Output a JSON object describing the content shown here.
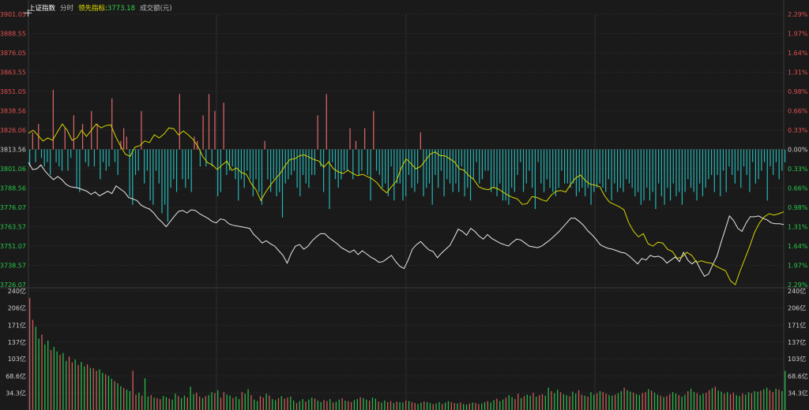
{
  "header": {
    "index_name": "上证指数",
    "period": "分时",
    "leading_label": "领先指标:",
    "leading_value": "3773.18",
    "volume_label": "成交额(元)"
  },
  "colors": {
    "background": "#1a1a1a",
    "grid": "#2f2f2f",
    "price_line": "#e8e8e8",
    "leading_line": "#d6d600",
    "up": "#e06a6a",
    "down": "#26b5b5",
    "volume_up": "#d05a5a",
    "volume_down": "#29b84a",
    "axis_up_text": "#e05050",
    "axis_down_text": "#27c84a",
    "axis_flat_text": "#cfcfcf",
    "header_index": "#ffffff",
    "header_leading": "#e0e000",
    "header_value": "#2fd24a",
    "header_muted": "#b8b8b8"
  },
  "chart_data": [
    {
      "type": "line",
      "title": "",
      "series": [
        {
          "name": "",
          "values": [
            3805.2,
            3800.5,
            3801.0,
            3803.5,
            3799.5,
            3796.5,
            3794.0,
            3796.0,
            3794.0,
            3791.0,
            3789.5,
            3789.0,
            3788.5,
            3787.5,
            3786.5,
            3784.5,
            3786.0,
            3783.5,
            3785.0,
            3786.5,
            3785.0,
            3790.0,
            3788.0,
            3786.0,
            3782.5,
            3781.5,
            3780.5,
            3777.5,
            3776.0,
            3775.0,
            3772.5,
            3769.0,
            3766.5,
            3763.5,
            3767.0,
            3770.5,
            3773.5,
            3774.0,
            3772.5,
            3774.5,
            3774.0,
            3772.0,
            3770.5,
            3769.0,
            3767.0,
            3766.0,
            3768.5,
            3768.0,
            3765.5,
            3764.5,
            3764.0,
            3763.5,
            3763.0,
            3762.5,
            3758.5,
            3756.0,
            3753.0,
            3754.5,
            3752.5,
            3751.0,
            3748.0,
            3745.0,
            3740.0,
            3746.5,
            3751.0,
            3752.0,
            3749.0,
            3751.0,
            3754.5,
            3757.0,
            3759.0,
            3759.0,
            3756.5,
            3754.5,
            3752.5,
            3750.0,
            3748.5,
            3747.0,
            3748.5,
            3745.5,
            3748.0,
            3746.0,
            3744.0,
            3742.5,
            3740.5,
            3741.0,
            3743.0,
            3745.0,
            3741.0,
            3738.0,
            3736.5,
            3742.0,
            3749.0,
            3752.0,
            3754.0,
            3751.0,
            3748.5,
            3747.5,
            3743.5,
            3746.5,
            3749.0,
            3751.5,
            3756.5,
            3762.0,
            3760.5,
            3758.0,
            3762.5,
            3760.5,
            3757.5,
            3755.5,
            3758.5,
            3756.0,
            3754.5,
            3753.0,
            3752.0,
            3751.0,
            3753.5,
            3755.5,
            3755.0,
            3753.0,
            3751.0,
            3750.5,
            3750.0,
            3751.0,
            3753.0,
            3755.0,
            3757.5,
            3760.0,
            3763.0,
            3766.0,
            3769.0,
            3769.0,
            3767.0,
            3764.5,
            3761.0,
            3758.5,
            3755.5,
            3752.0,
            3750.5,
            3749.5,
            3749.0,
            3748.0,
            3747.0,
            3746.5,
            3744.5,
            3742.0,
            3739.5,
            3743.0,
            3742.0,
            3745.0,
            3744.0,
            3744.5,
            3743.0,
            3740.0,
            3742.0,
            3744.0,
            3741.0,
            3747.0,
            3742.0,
            3739.5,
            3741.5,
            3736.0,
            3731.5,
            3733.0,
            3739.0,
            3744.5,
            3753.5,
            3762.0,
            3770.5,
            3767.5,
            3762.5,
            3760.5,
            3766.0,
            3770.0,
            3770.0,
            3770.5,
            3769.0,
            3768.0,
            3766.0,
            3765.5,
            3765.5,
            3765.0
          ]
        },
        {
          "name": "",
          "values": [
            3824.0,
            3826.0,
            3822.5,
            3819.0,
            3821.0,
            3819.5,
            3825.0,
            3830.0,
            3826.0,
            3819.5,
            3821.0,
            3826.0,
            3822.0,
            3826.0,
            3830.0,
            3827.5,
            3829.0,
            3829.5,
            3822.0,
            3816.0,
            3810.5,
            3809.0,
            3815.0,
            3816.0,
            3819.0,
            3818.0,
            3823.0,
            3821.0,
            3823.5,
            3827.5,
            3827.0,
            3823.0,
            3825.5,
            3823.0,
            3820.0,
            3815.5,
            3809.0,
            3805.0,
            3803.5,
            3800.5,
            3803.5,
            3806.0,
            3800.0,
            3801.5,
            3798.5,
            3797.5,
            3791.5,
            3787.5,
            3780.5,
            3786.0,
            3790.5,
            3794.5,
            3798.0,
            3803.0,
            3807.0,
            3807.5,
            3809.5,
            3810.0,
            3808.5,
            3807.0,
            3806.0,
            3802.0,
            3805.5,
            3801.0,
            3799.0,
            3798.0,
            3800.0,
            3798.0,
            3796.5,
            3797.5,
            3796.0,
            3794.5,
            3792.0,
            3788.0,
            3785.5,
            3789.5,
            3793.0,
            3801.5,
            3807.5,
            3804.5,
            3801.0,
            3802.5,
            3806.5,
            3810.5,
            3812.0,
            3809.5,
            3809.5,
            3807.5,
            3805.5,
            3801.0,
            3800.0,
            3796.5,
            3794.0,
            3789.5,
            3788.0,
            3787.5,
            3789.0,
            3788.0,
            3786.0,
            3784.0,
            3782.5,
            3781.5,
            3778.0,
            3778.5,
            3783.0,
            3782.5,
            3781.0,
            3780.0,
            3784.0,
            3786.5,
            3787.0,
            3786.0,
            3791.0,
            3795.0,
            3797.0,
            3793.5,
            3791.0,
            3790.5,
            3789.5,
            3783.5,
            3779.5,
            3778.0,
            3776.5,
            3774.5,
            3766.0,
            3760.5,
            3757.0,
            3759.0,
            3752.5,
            3751.0,
            3753.5,
            3753.0,
            3749.0,
            3747.5,
            3743.0,
            3744.0,
            3747.0,
            3745.0,
            3740.5,
            3741.5,
            3740.5,
            3740.0,
            3738.0,
            3736.5,
            3735.0,
            3728.5,
            3726.0,
            3735.0,
            3743.0,
            3751.0,
            3760.0,
            3766.0,
            3770.0,
            3772.0,
            3771.0,
            3772.0,
            3773.18
          ]
        }
      ],
      "ylim": [
        3726.07,
        3901.05
      ],
      "ticks_left": [
        "3901.05",
        "3888.55",
        "3876.05",
        "3863.55",
        "3851.05",
        "3838.56",
        "3826.06",
        "3813.56",
        "3801.06",
        "3788.56",
        "3776.07",
        "3763.57",
        "3751.07",
        "3738.57",
        "3726.07"
      ],
      "ticks_right": [
        "2.29%",
        "1.97%",
        "1.64%",
        "1.31%",
        "0.98%",
        "0.66%",
        "0.33%",
        "0.00%",
        "0.33%",
        "0.66%",
        "0.98%",
        "1.31%",
        "1.64%",
        "1.97%",
        "2.29%"
      ],
      "baseline": 3813.56,
      "grid": true
    },
    {
      "type": "bar",
      "title": "",
      "series": [
        {
          "name": "",
          "values": [
            -4,
            4,
            -3,
            6,
            -2,
            -4,
            -3,
            -6,
            14,
            -3,
            -4,
            -5,
            5,
            -5,
            -2,
            8,
            -9,
            -10,
            6,
            -3,
            -4,
            9,
            -4,
            6,
            -7,
            -3,
            -5,
            -4,
            12,
            -3,
            -6,
            2,
            5,
            3,
            -11,
            -13,
            -6,
            -5,
            9,
            -8,
            -5,
            -12,
            -13,
            -5,
            -8,
            -15,
            -13,
            -17,
            -9,
            -7,
            -10,
            13,
            -7,
            -9,
            -7,
            -10,
            3,
            2,
            -4,
            8,
            -4,
            13,
            -4,
            9,
            -11,
            -10,
            11,
            -6,
            -5,
            -4,
            -7,
            -12,
            -7,
            -9,
            -5,
            -7,
            -11,
            -7,
            -10,
            -13,
            2,
            -7,
            -10,
            -7,
            -11,
            -10,
            -16,
            -8,
            -7,
            -6,
            -5,
            -9,
            -11,
            -6,
            -8,
            -9,
            -6,
            -6,
            8,
            -4,
            -10,
            13,
            -14,
            -3,
            -7,
            -9,
            -7,
            -5,
            -5,
            5,
            -7,
            2,
            -6,
            -5,
            5,
            -6,
            -12,
            9,
            -5,
            -6,
            -9,
            -8,
            -11,
            -4,
            -12,
            -8,
            -8,
            -12,
            -11,
            -6,
            -9,
            -10,
            -8,
            4,
            -11,
            -9,
            -8,
            -13,
            -6,
            -9,
            -5,
            -11,
            -7,
            -8,
            -10,
            -8,
            -10,
            -4,
            -11,
            -9,
            -12,
            -7,
            -3,
            -8,
            -7,
            -5,
            -5,
            -10,
            -9,
            -11,
            -8,
            -12,
            -12,
            -13,
            -9,
            -10,
            -6,
            -3,
            -10,
            -8,
            -5,
            -9,
            -14,
            -3,
            -8,
            -10,
            -7,
            -9,
            -10,
            -11,
            -9,
            -5,
            -8,
            -8,
            -9,
            -8,
            -11,
            -10,
            -9,
            -11,
            -9,
            -13,
            -10,
            -9,
            -8,
            -9,
            -10,
            -7,
            -12,
            -8,
            -10,
            -9,
            -10,
            -7,
            -8,
            -9,
            -11,
            -10,
            -13,
            -12,
            -9,
            -12,
            -10,
            -14,
            -8,
            -11,
            -13,
            -9,
            -12,
            -8,
            -11,
            -10,
            -13,
            -10,
            -7,
            -9,
            -10,
            -12,
            -8,
            -11,
            -9,
            -7,
            -6,
            -10,
            -6,
            -11,
            -5,
            -10,
            -4,
            -6,
            -8,
            -5,
            -9,
            -4,
            -6,
            -10,
            -3,
            -8,
            -7,
            -5,
            -3,
            -12,
            -4,
            -6,
            -3,
            -7,
            -5,
            -3
          ]
        }
      ]
    },
    {
      "type": "bar",
      "title": "",
      "series": [
        {
          "name": "",
          "values": [
            226,
            182,
            168,
            144,
            152,
            132,
            140,
            121,
            127,
            118,
            111,
            115,
            99,
            108,
            96,
            102,
            91,
            97,
            88,
            92,
            85,
            84,
            79,
            82,
            75,
            72,
            69,
            63,
            58,
            54,
            48,
            44,
            41,
            38,
            79,
            31,
            35,
            29,
            64,
            27,
            30,
            25,
            24,
            22,
            28,
            26,
            23,
            21,
            33,
            28,
            24,
            29,
            25,
            47,
            32,
            35,
            27,
            24,
            28,
            30,
            36,
            34,
            40,
            25,
            36,
            31,
            29,
            24,
            27,
            22,
            36,
            33,
            42,
            30,
            21,
            18,
            28,
            25,
            33,
            29,
            22,
            20,
            24,
            28,
            23,
            25,
            27,
            19,
            14,
            18,
            22,
            17,
            21,
            25,
            23,
            19,
            16,
            20,
            18,
            22,
            15,
            17,
            21,
            24,
            19,
            18,
            16,
            20,
            22,
            26,
            24,
            21,
            19,
            25,
            23,
            17,
            15,
            19,
            16,
            18,
            14,
            17,
            16,
            15,
            19,
            18,
            16,
            14,
            12,
            15,
            17,
            16,
            14,
            12,
            13,
            16,
            12,
            15,
            18,
            16,
            14,
            13,
            15,
            12,
            11,
            13,
            15,
            14,
            12,
            13,
            16,
            18,
            15,
            20,
            23,
            18,
            21,
            25,
            30,
            26,
            22,
            33,
            24,
            28,
            31,
            29,
            35,
            27,
            30,
            32,
            29,
            45,
            38,
            34,
            41,
            36,
            32,
            30,
            28,
            37,
            33,
            40,
            31,
            29,
            27,
            36,
            31,
            34,
            38,
            36,
            33,
            30,
            29,
            31,
            34,
            38,
            45,
            40,
            37,
            35,
            32,
            30,
            34,
            36,
            42,
            39,
            35,
            31,
            29,
            26,
            28,
            32,
            36,
            33,
            30,
            27,
            31,
            38,
            43,
            36,
            34,
            30,
            33,
            35,
            40,
            44,
            47,
            39,
            37,
            33,
            36,
            32,
            35,
            30,
            28,
            33,
            31,
            36,
            34,
            38,
            37,
            39,
            42,
            45,
            40,
            36,
            43,
            41,
            38,
            79
          ]
        }
      ],
      "ylim": [
        0,
        240
      ],
      "ticks": [
        "240亿",
        "206亿",
        "171亿",
        "137亿",
        "103亿",
        "68.6亿",
        "34.3亿"
      ]
    }
  ]
}
